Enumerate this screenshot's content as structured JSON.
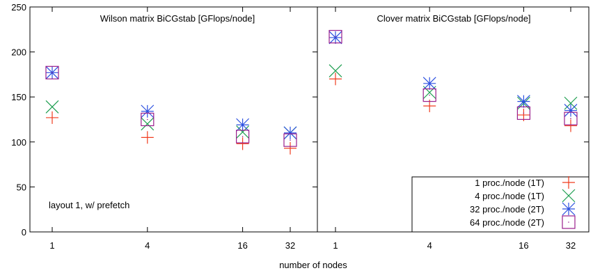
{
  "chart_data": {
    "type": "scatter",
    "xlabel": "number of nodes",
    "ylim": [
      0,
      250
    ],
    "yticks": [
      0,
      50,
      100,
      150,
      200,
      250
    ],
    "x_scale": "log2",
    "xticks": [
      1,
      4,
      16,
      32
    ],
    "grid": false,
    "annotation": "layout 1, w/ prefetch",
    "colors": {
      "series1": "#f03c1e",
      "series2": "#1e9e50",
      "series3": "#2a4fe0",
      "series4": "#9a1e8c"
    },
    "legend": {
      "placement": "bottom-right of second panel",
      "entries": [
        "1 proc./node (1T)",
        "4 proc./node (1T)",
        "32 proc./node (2T)",
        "64 proc./node (2T)"
      ]
    },
    "panels": [
      {
        "title": "Wilson matrix BiCGstab [GFlops/node]",
        "x": [
          1,
          4,
          16,
          32
        ],
        "series": [
          {
            "name": "1 proc./node (1T)",
            "marker": "plus",
            "values": [
              127,
              105,
              98,
              93
            ]
          },
          {
            "name": "4 proc./node (1T)",
            "marker": "cross",
            "values": [
              139,
              120,
              111,
              110
            ]
          },
          {
            "name": "32 proc./node (2T)",
            "marker": "star",
            "values": [
              177,
              134,
              119,
              110
            ]
          },
          {
            "name": "64 proc./node (2T)",
            "marker": "square",
            "values": [
              177,
              125,
              106,
              102
            ]
          }
        ]
      },
      {
        "title": "Clover matrix BiCGstab [GFlops/node]",
        "x": [
          1,
          4,
          16,
          32
        ],
        "series": [
          {
            "name": "1 proc./node (1T)",
            "marker": "plus",
            "values": [
              170,
              140,
              130,
              118
            ]
          },
          {
            "name": "4 proc./node (1T)",
            "marker": "cross",
            "values": [
              179,
              155,
              143,
              143
            ]
          },
          {
            "name": "32 proc./node (2T)",
            "marker": "star",
            "values": [
              216,
              165,
              145,
              135
            ]
          },
          {
            "name": "64 proc./node (2T)",
            "marker": "square",
            "values": [
              217,
              152,
              132,
              126
            ]
          }
        ]
      }
    ]
  }
}
